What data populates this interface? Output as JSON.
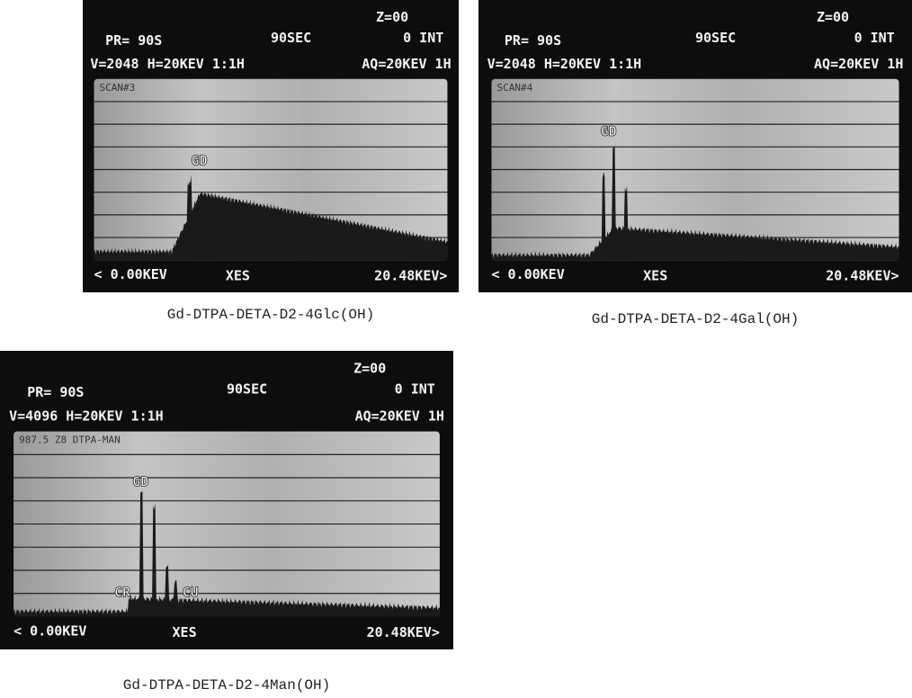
{
  "panels": [
    {
      "z": "Z=00",
      "preset": "PR= 90S",
      "time": "90SEC",
      "integral": "0 INT",
      "scale": "V=2048 H=20KEV 1:1H",
      "acquisition": "AQ=20KEV 1H",
      "label": "SCAN#3",
      "peaks": [
        "GD"
      ],
      "range_start": "< 0.00KEV",
      "mode": "XES",
      "range_end": "20.48KEV>",
      "caption": "Gd-DTPA-DETA-D2-4Glc(OH)"
    },
    {
      "z": "Z=00",
      "preset": "PR= 90S",
      "time": "90SEC",
      "integral": "0 INT",
      "scale": "V=2048 H=20KEV 1:1H",
      "acquisition": "AQ=20KEV 1H",
      "label": "SCAN#4",
      "peaks": [
        "GD"
      ],
      "range_start": "< 0.00KEV",
      "mode": "XES",
      "range_end": "20.48KEV>",
      "caption": "Gd-DTPA-DETA-D2-4Gal(OH)"
    },
    {
      "z": "Z=00",
      "preset": "PR= 90S",
      "time": "90SEC",
      "integral": "0 INT",
      "scale": "V=4096 H=20KEV 1:1H",
      "acquisition": "AQ=20KEV 1H",
      "label": "987.5 Z8 DTPA-MAN",
      "peaks": [
        "GD",
        "CR",
        "CU"
      ],
      "range_start": "< 0.00KEV",
      "mode": "XES",
      "range_end": "20.48KEV>",
      "caption": "Gd-DTPA-DETA-D2-4Man(OH)"
    }
  ]
}
